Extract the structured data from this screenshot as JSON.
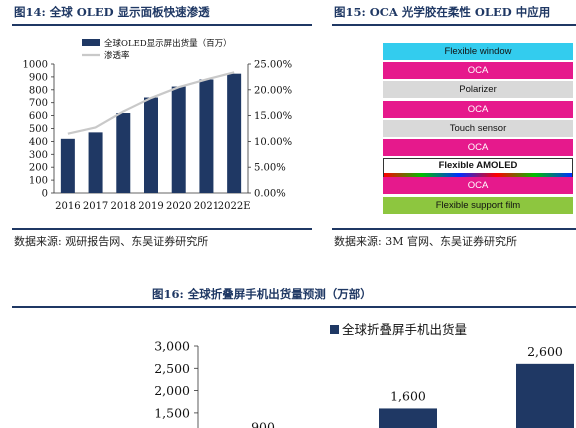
{
  "fig14": {
    "title": "图14:  全球 OLED 显示面板快速渗透",
    "source": "数据来源:  观研报告网、东吴证券研究所",
    "chart_data": {
      "type": "bar",
      "categories": [
        "2016",
        "2017",
        "2018",
        "2019",
        "2020",
        "2021",
        "2022E"
      ],
      "series": [
        {
          "name": "全球OLED显示屏出货量（百万）",
          "type": "bar",
          "axis": "left",
          "color": "#1f3864",
          "values": [
            420,
            470,
            620,
            740,
            825,
            880,
            925
          ]
        },
        {
          "name": "渗透率",
          "type": "line",
          "axis": "right",
          "color": "#c9c9c9",
          "values": [
            0.115,
            0.127,
            0.158,
            0.184,
            0.205,
            0.22,
            0.234
          ]
        }
      ],
      "y_left": {
        "range": [
          0,
          1000
        ],
        "ticks": [
          "0",
          "100",
          "200",
          "300",
          "400",
          "500",
          "600",
          "700",
          "800",
          "900",
          "1000"
        ]
      },
      "y_right": {
        "range": [
          0,
          0.25
        ],
        "ticks": [
          "0.00%",
          "5.00%",
          "10.00%",
          "15.00%",
          "20.00%",
          "25.00%"
        ]
      },
      "legend": "top"
    }
  },
  "fig15": {
    "title": "图15:  OCA 光学胶在柔性 OLED 中应用",
    "source": "数据来源:  3M 官网、东吴证券研究所",
    "layers": [
      {
        "label": "Flexible window",
        "color": "#33ccee"
      },
      {
        "label": "OCA",
        "color": "#e6198c"
      },
      {
        "label": "Polarizer",
        "color": "#d9d9d9"
      },
      {
        "label": "OCA",
        "color": "#e6198c"
      },
      {
        "label": "Touch sensor",
        "color": "#d9d9d9"
      },
      {
        "label": "OCA",
        "color": "#e6198c"
      },
      {
        "label": "Flexible AMOLED",
        "color": "#ffffff"
      },
      {
        "label": "OCA",
        "color": "#e6198c"
      },
      {
        "label": "Flexible support film",
        "color": "#8dc63f"
      }
    ]
  },
  "fig16": {
    "title": "图16:  全球折叠屏手机出货量预测（万部）",
    "chart_data": {
      "type": "bar",
      "series": [
        {
          "name": "全球折叠屏手机出货量",
          "color": "#1f3864",
          "values": [
            900,
            1600,
            2600
          ]
        }
      ],
      "data_labels": [
        "900",
        "1,600",
        "2,600"
      ],
      "y_left": {
        "range": [
          0,
          3000
        ],
        "ticks_visible": [
          "1,500",
          "2,000",
          "2,500",
          "3,000"
        ]
      },
      "legend": "top-right"
    }
  }
}
